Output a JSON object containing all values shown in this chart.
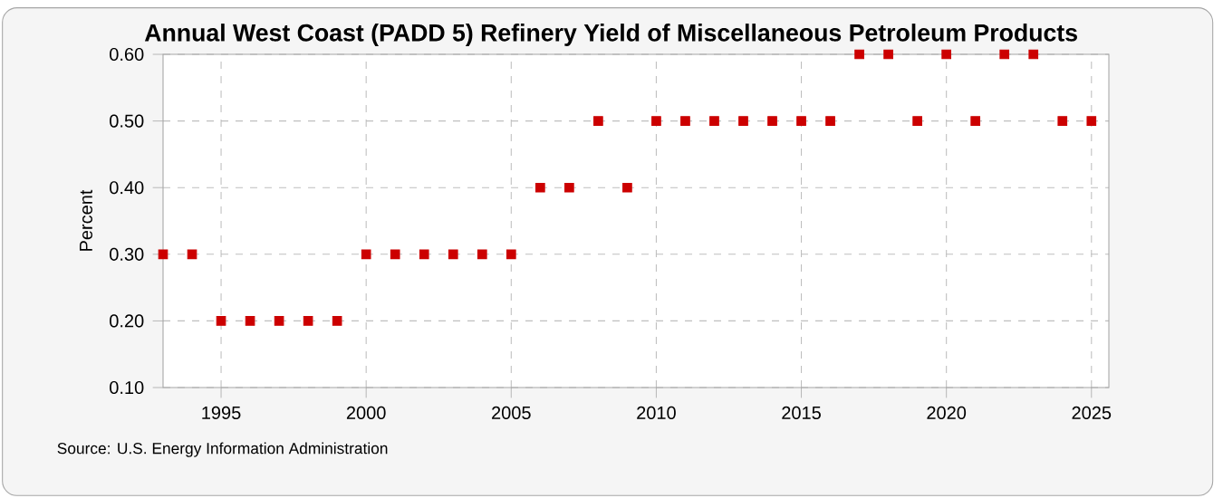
{
  "chart_data": {
    "type": "scatter",
    "title": "Annual West Coast (PADD 5) Refinery Yield of Miscellaneous Petroleum Products",
    "ylabel": "Percent",
    "x": [
      1993,
      1994,
      1995,
      1996,
      1997,
      1998,
      1999,
      2000,
      2001,
      2002,
      2003,
      2004,
      2005,
      2006,
      2007,
      2008,
      2009,
      2010,
      2011,
      2012,
      2013,
      2014,
      2015,
      2016,
      2017,
      2018,
      2019,
      2020,
      2021,
      2022,
      2023,
      2024,
      2025
    ],
    "values": [
      0.3,
      0.3,
      0.2,
      0.2,
      0.2,
      0.2,
      0.2,
      0.3,
      0.3,
      0.3,
      0.3,
      0.3,
      0.3,
      0.4,
      0.4,
      0.5,
      0.4,
      0.5,
      0.5,
      0.5,
      0.5,
      0.5,
      0.5,
      0.5,
      0.6,
      0.6,
      0.5,
      0.6,
      0.5,
      0.6,
      0.6,
      0.5,
      0.5
    ],
    "color": "#cc0000",
    "marker": "square",
    "line_style": "none",
    "xlim": [
      1993,
      2025.6
    ],
    "xticks": [
      1995,
      2000,
      2005,
      2010,
      2015,
      2020,
      2025
    ],
    "ylim": [
      0.1,
      0.6
    ],
    "yticks": [
      {
        "value": 0.1,
        "label": "0.10"
      },
      {
        "value": 0.2,
        "label": "0.20"
      },
      {
        "value": 0.3,
        "label": "0.30"
      },
      {
        "value": 0.4,
        "label": "0.40"
      },
      {
        "value": 0.5,
        "label": "0.50"
      },
      {
        "value": 0.6,
        "label": "0.60"
      }
    ],
    "grid": true,
    "annotations": [
      "Source: U.S. Energy Information Administration"
    ]
  }
}
